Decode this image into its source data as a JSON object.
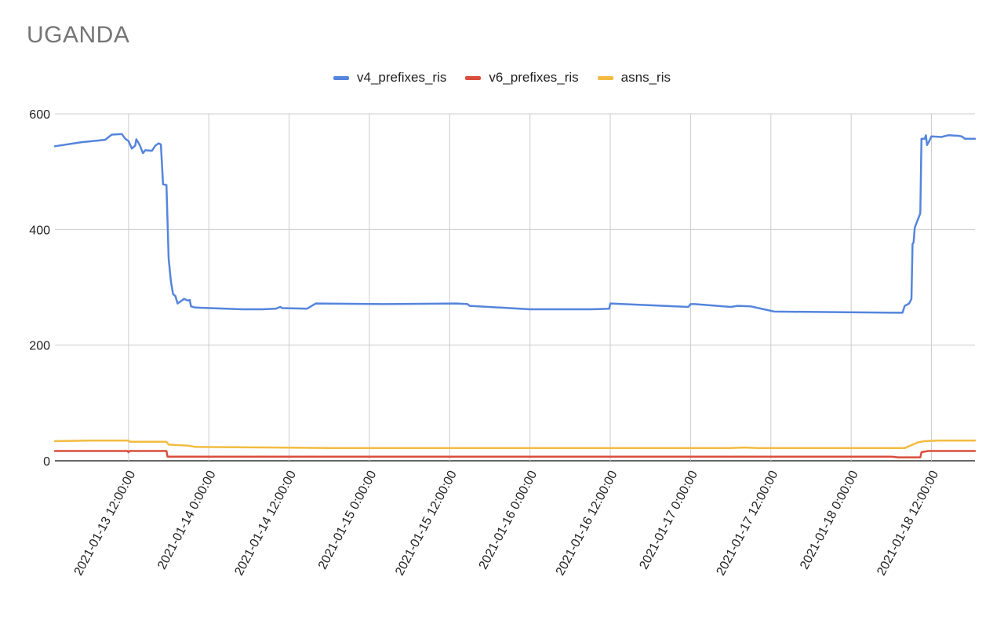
{
  "chart_data": {
    "type": "line",
    "title": "UGANDA",
    "xlabel": "",
    "ylabel": "",
    "x_range": [
      "2021-01-13 01:00:00",
      "2021-01-18 18:30:00"
    ],
    "ylim": [
      0,
      600
    ],
    "y_ticks": [
      0,
      200,
      400,
      600
    ],
    "x_ticks": [
      "2021-01-13 12:00:00",
      "2021-01-14 0:00:00",
      "2021-01-14 12:00:00",
      "2021-01-15 0:00:00",
      "2021-01-15 12:00:00",
      "2021-01-16 0:00:00",
      "2021-01-16 12:00:00",
      "2021-01-17 0:00:00",
      "2021-01-17 12:00:00",
      "2021-01-18 0:00:00",
      "2021-01-18 12:00:00"
    ],
    "grid": true,
    "legend_position": "top",
    "series": [
      {
        "name": "v4_prefixes_ris",
        "color": "#5585dc",
        "points": [
          [
            "2021-01-13 01:00",
            544
          ],
          [
            "2021-01-13 05:00",
            551
          ],
          [
            "2021-01-13 08:30",
            555
          ],
          [
            "2021-01-13 09:30",
            564
          ],
          [
            "2021-01-13 11:00",
            565
          ],
          [
            "2021-01-13 11:30",
            557
          ],
          [
            "2021-01-13 12:00",
            553
          ],
          [
            "2021-01-13 12:30",
            540
          ],
          [
            "2021-01-13 13:00",
            545
          ],
          [
            "2021-01-13 13:10",
            556
          ],
          [
            "2021-01-13 13:40",
            546
          ],
          [
            "2021-01-13 14:10",
            532
          ],
          [
            "2021-01-13 14:30",
            537
          ],
          [
            "2021-01-13 15:30",
            536
          ],
          [
            "2021-01-13 16:00",
            545
          ],
          [
            "2021-01-13 16:30",
            549
          ],
          [
            "2021-01-13 16:50",
            547
          ],
          [
            "2021-01-13 17:10",
            478
          ],
          [
            "2021-01-13 17:40",
            477
          ],
          [
            "2021-01-13 18:00",
            350
          ],
          [
            "2021-01-13 18:20",
            310
          ],
          [
            "2021-01-13 18:40",
            288
          ],
          [
            "2021-01-13 19:00",
            285
          ],
          [
            "2021-01-13 19:20",
            272
          ],
          [
            "2021-01-13 20:20",
            280
          ],
          [
            "2021-01-13 20:50",
            277
          ],
          [
            "2021-01-13 21:10",
            278
          ],
          [
            "2021-01-13 21:20",
            267
          ],
          [
            "2021-01-13 22:00",
            265
          ],
          [
            "2021-01-14 05:00",
            262
          ],
          [
            "2021-01-14 06:00",
            262
          ],
          [
            "2021-01-14 08:00",
            262
          ],
          [
            "2021-01-14 10:00",
            263
          ],
          [
            "2021-01-14 10:40",
            266
          ],
          [
            "2021-01-14 11:00",
            264
          ],
          [
            "2021-01-14 14:40",
            263
          ],
          [
            "2021-01-14 16:00",
            272
          ],
          [
            "2021-01-15 02:00",
            271
          ],
          [
            "2021-01-15 13:00",
            272
          ],
          [
            "2021-01-15 14:40",
            271
          ],
          [
            "2021-01-15 15:00",
            268
          ],
          [
            "2021-01-16 00:00",
            262
          ],
          [
            "2021-01-16 09:00",
            262
          ],
          [
            "2021-01-16 11:50",
            263
          ],
          [
            "2021-01-16 12:00",
            272
          ],
          [
            "2021-01-16 23:40",
            266
          ],
          [
            "2021-01-17 00:00",
            271
          ],
          [
            "2021-01-17 00:40",
            271
          ],
          [
            "2021-01-17 06:00",
            266
          ],
          [
            "2021-01-17 07:00",
            268
          ],
          [
            "2021-01-17 09:00",
            267
          ],
          [
            "2021-01-17 12:30",
            258
          ],
          [
            "2021-01-18 06:30",
            256
          ],
          [
            "2021-01-18 07:40",
            256
          ],
          [
            "2021-01-18 08:00",
            268
          ],
          [
            "2021-01-18 08:40",
            272
          ],
          [
            "2021-01-18 09:00",
            280
          ],
          [
            "2021-01-18 09:10",
            375
          ],
          [
            "2021-01-18 09:20",
            378
          ],
          [
            "2021-01-18 09:30",
            403
          ],
          [
            "2021-01-18 10:20",
            428
          ],
          [
            "2021-01-18 10:30",
            557
          ],
          [
            "2021-01-18 11:00",
            557
          ],
          [
            "2021-01-18 11:10",
            563
          ],
          [
            "2021-01-18 11:20",
            546
          ],
          [
            "2021-01-18 11:40",
            553
          ],
          [
            "2021-01-18 12:00",
            561
          ],
          [
            "2021-01-18 13:30",
            560
          ],
          [
            "2021-01-18 14:30",
            563
          ],
          [
            "2021-01-18 16:00",
            562
          ],
          [
            "2021-01-18 16:30",
            561
          ],
          [
            "2021-01-18 17:00",
            557
          ],
          [
            "2021-01-18 18:30",
            557
          ]
        ]
      },
      {
        "name": "v6_prefixes_ris",
        "color": "#d94e3c",
        "points": [
          [
            "2021-01-13 01:00",
            17
          ],
          [
            "2021-01-13 11:50",
            17
          ],
          [
            "2021-01-13 12:00",
            15
          ],
          [
            "2021-01-13 12:10",
            17
          ],
          [
            "2021-01-13 17:40",
            17
          ],
          [
            "2021-01-13 17:50",
            7
          ],
          [
            "2021-01-18 06:00",
            7
          ],
          [
            "2021-01-18 07:00",
            6
          ],
          [
            "2021-01-18 10:20",
            6
          ],
          [
            "2021-01-18 10:30",
            15
          ],
          [
            "2021-01-18 11:30",
            17
          ],
          [
            "2021-01-18 18:30",
            17
          ]
        ]
      },
      {
        "name": "asns_ris",
        "color": "#f2bc42",
        "points": [
          [
            "2021-01-13 01:00",
            34
          ],
          [
            "2021-01-13 06:00",
            35
          ],
          [
            "2021-01-13 12:00",
            35
          ],
          [
            "2021-01-13 12:10",
            33
          ],
          [
            "2021-01-13 17:40",
            33
          ],
          [
            "2021-01-13 18:00",
            28
          ],
          [
            "2021-01-13 21:00",
            26
          ],
          [
            "2021-01-13 22:00",
            24
          ],
          [
            "2021-01-14 10:00",
            23
          ],
          [
            "2021-01-14 18:00",
            22
          ],
          [
            "2021-01-15 06:00",
            22
          ],
          [
            "2021-01-17 06:00",
            22
          ],
          [
            "2021-01-17 08:00",
            23
          ],
          [
            "2021-01-17 10:00",
            22
          ],
          [
            "2021-01-18 06:00",
            22
          ],
          [
            "2021-01-18 08:00",
            22
          ],
          [
            "2021-01-18 10:00",
            32
          ],
          [
            "2021-01-18 11:00",
            34
          ],
          [
            "2021-01-18 13:00",
            35
          ],
          [
            "2021-01-18 18:30",
            35
          ]
        ]
      }
    ]
  }
}
